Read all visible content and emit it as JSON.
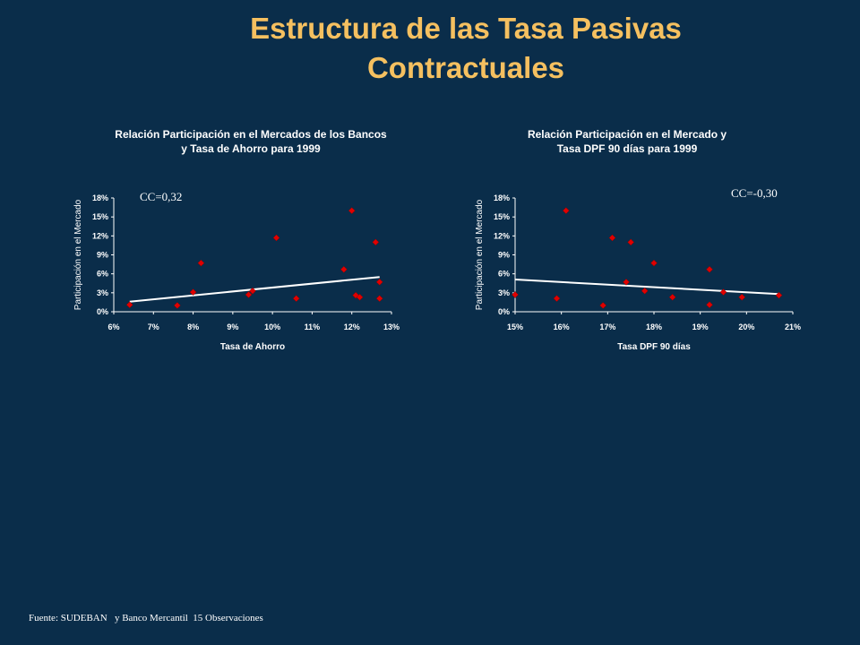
{
  "slide": {
    "title": "Estructura de las Tasa Pasivas Contractuales",
    "footer": "Fuente: SUDEBAN   y Banco Mercantil  15 Observaciones"
  },
  "colors": {
    "background": "#0a2d4a",
    "title": "#f5c060",
    "marker": "#e00000",
    "trendline": "#ffffff"
  },
  "chart_data": [
    {
      "type": "scatter",
      "title": "Relación Participación en el Mercados de los Bancos",
      "subtitle": "y Tasa de Ahorro para 1999",
      "annotation": "CC=0,32",
      "xlabel": "Tasa de Ahorro",
      "ylabel": "Participación en el Mercado",
      "xlim": [
        0.06,
        0.13
      ],
      "ylim": [
        0,
        0.18
      ],
      "xticks": [
        "6%",
        "7%",
        "8%",
        "9%",
        "10%",
        "11%",
        "12%",
        "13%"
      ],
      "yticks": [
        "0%",
        "3%",
        "6%",
        "9%",
        "12%",
        "15%",
        "18%"
      ],
      "grid": false,
      "points": [
        [
          0.064,
          0.011
        ],
        [
          0.076,
          0.01
        ],
        [
          0.08,
          0.031
        ],
        [
          0.082,
          0.077
        ],
        [
          0.094,
          0.027
        ],
        [
          0.095,
          0.033
        ],
        [
          0.101,
          0.117
        ],
        [
          0.106,
          0.021
        ],
        [
          0.118,
          0.067
        ],
        [
          0.12,
          0.16
        ],
        [
          0.121,
          0.026
        ],
        [
          0.122,
          0.023
        ],
        [
          0.126,
          0.11
        ],
        [
          0.127,
          0.047
        ],
        [
          0.127,
          0.021
        ]
      ],
      "trendline": [
        [
          0.064,
          0.016
        ],
        [
          0.127,
          0.055
        ]
      ]
    },
    {
      "type": "scatter",
      "title": "Relación Participación en el Mercado  y",
      "subtitle": "Tasa DPF 90 días para 1999",
      "annotation": "CC=-0,30",
      "xlabel": "Tasa DPF 90 días",
      "ylabel": "Participación en el Mercado",
      "xlim": [
        0.15,
        0.21
      ],
      "ylim": [
        0,
        0.18
      ],
      "xticks": [
        "15%",
        "16%",
        "17%",
        "18%",
        "19%",
        "20%",
        "21%"
      ],
      "yticks": [
        "0%",
        "3%",
        "6%",
        "9%",
        "12%",
        "15%",
        "18%"
      ],
      "grid": false,
      "points": [
        [
          0.15,
          0.027
        ],
        [
          0.159,
          0.021
        ],
        [
          0.161,
          0.16
        ],
        [
          0.169,
          0.01
        ],
        [
          0.171,
          0.117
        ],
        [
          0.174,
          0.047
        ],
        [
          0.175,
          0.11
        ],
        [
          0.178,
          0.033
        ],
        [
          0.18,
          0.077
        ],
        [
          0.184,
          0.023
        ],
        [
          0.192,
          0.067
        ],
        [
          0.192,
          0.011
        ],
        [
          0.195,
          0.031
        ],
        [
          0.199,
          0.023
        ],
        [
          0.207,
          0.026
        ]
      ],
      "trendline": [
        [
          0.15,
          0.051
        ],
        [
          0.207,
          0.028
        ]
      ]
    }
  ]
}
